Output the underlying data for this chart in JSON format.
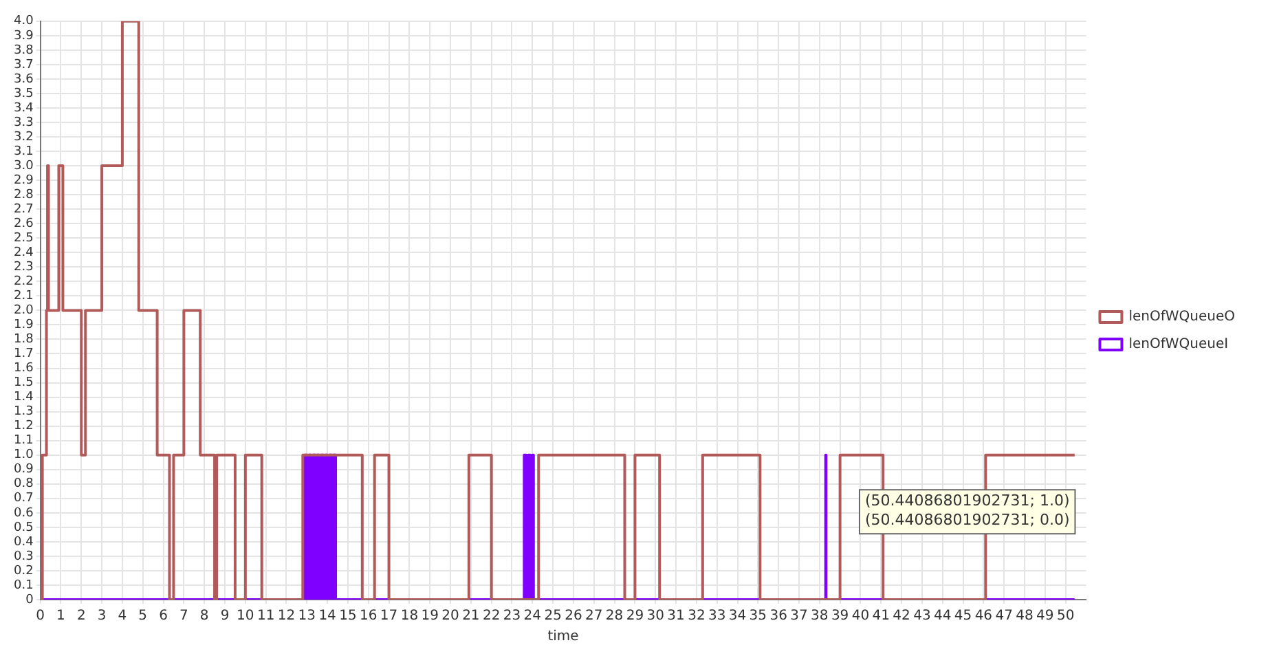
{
  "chart_data": {
    "type": "step",
    "xlabel": "time",
    "xlim": [
      0,
      51
    ],
    "xticks": [
      0,
      1,
      2,
      3,
      4,
      5,
      6,
      7,
      8,
      9,
      10,
      11,
      12,
      13,
      14,
      15,
      16,
      17,
      18,
      19,
      20,
      21,
      22,
      23,
      24,
      25,
      26,
      27,
      28,
      29,
      30,
      31,
      32,
      33,
      34,
      35,
      36,
      37,
      38,
      39,
      40,
      41,
      42,
      43,
      44,
      45,
      46,
      47,
      48,
      49,
      50
    ],
    "ylim": [
      0,
      4
    ],
    "yticks": [
      0,
      0.1,
      0.2,
      0.3,
      0.4,
      0.5,
      0.6,
      0.7,
      0.8,
      0.9,
      {
        "value": 1,
        "label": "1.0"
      },
      1.1,
      1.2,
      1.3,
      1.4,
      1.5,
      1.6,
      1.7,
      1.8,
      1.9,
      {
        "value": 2,
        "label": "2.0"
      },
      2.1,
      2.2,
      2.3,
      2.4,
      2.5,
      2.6,
      2.7,
      2.8,
      2.9,
      {
        "value": 3,
        "label": "3.0"
      },
      3.1,
      3.2,
      3.3,
      3.4,
      3.5,
      3.6,
      3.7,
      3.8,
      3.9,
      {
        "value": 4,
        "label": "4.0"
      }
    ],
    "grid": true,
    "legend": "right",
    "marker": "none",
    "line_style": "solid",
    "series": [
      {
        "name": "lenOfWQueueO",
        "color": "#b05a5a",
        "x": [
          0,
          0.1,
          0.3,
          0.35,
          0.4,
          0.9,
          1.1,
          2.0,
          2.2,
          3.0,
          4.0,
          4.8,
          5.7,
          6.3,
          6.5,
          7.0,
          7.8,
          8.5,
          8.6,
          9.5,
          10.0,
          10.8,
          12.8,
          15.7,
          16.3,
          17.0,
          20.9,
          22.0,
          24.3,
          28.5,
          29.0,
          30.2,
          32.3,
          35.1,
          39.0,
          41.1,
          46.1,
          50.44086801902731
        ],
        "values": [
          0,
          1,
          2,
          3,
          2,
          3,
          2,
          1,
          2,
          3,
          4,
          2,
          1,
          0,
          1,
          2,
          1,
          0,
          1,
          0,
          1,
          0,
          1,
          0,
          1,
          0,
          1,
          0,
          1,
          0,
          1,
          0,
          1,
          0,
          1,
          0,
          1,
          1
        ]
      },
      {
        "name": "lenOfWQueueI",
        "color": "#7f00ff",
        "x": [
          0,
          12.9,
          13.0,
          13.1,
          13.2,
          13.3,
          13.4,
          13.5,
          13.6,
          13.7,
          13.8,
          13.9,
          14.0,
          14.1,
          14.2,
          14.3,
          14.4,
          23.6,
          23.7,
          23.8,
          23.9,
          24.0,
          24.05,
          38.3,
          38.32,
          50.44086801902731
        ],
        "values": [
          0,
          1,
          0,
          1,
          0,
          1,
          0,
          1,
          0,
          1,
          0,
          1,
          0,
          1,
          0,
          1,
          0,
          1,
          0,
          1,
          0,
          1,
          0,
          1,
          0,
          0
        ]
      }
    ],
    "annotations": [
      "(50.44086801902731; 1.0)",
      "(50.44086801902731; 0.0)"
    ]
  }
}
